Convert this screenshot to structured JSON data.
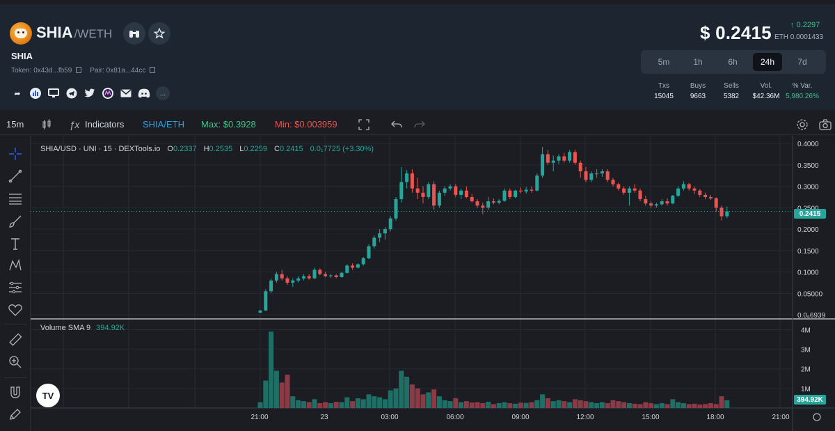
{
  "pair": {
    "base": "SHIA",
    "quote": "/WETH",
    "token_name": "SHIA",
    "token_addr": "Token: 0x43d...fb59",
    "pair_addr": "Pair: 0x81a...44cc"
  },
  "price": {
    "usd": "$ 0.2415",
    "change": "↑ 0.2297",
    "eth": "ETH 0.0001433"
  },
  "timeframes": [
    {
      "label": "5m",
      "active": false
    },
    {
      "label": "1h",
      "active": false
    },
    {
      "label": "6h",
      "active": false
    },
    {
      "label": "24h",
      "active": true
    },
    {
      "label": "7d",
      "active": false
    }
  ],
  "stats": [
    {
      "label": "Txs",
      "value": "15045"
    },
    {
      "label": "Buys",
      "value": "9663"
    },
    {
      "label": "Sells",
      "value": "5382"
    },
    {
      "label": "Vol.",
      "value": "$42.36M"
    },
    {
      "label": "% Var.",
      "value": "5,980.26%"
    }
  ],
  "toolbar": {
    "interval": "15m",
    "indicators": "Indicators",
    "symbol": "SHIA/ETH",
    "max": "Max: $0.3928",
    "min": "Min: $0.003959"
  },
  "legend": {
    "title": "SHIA/USD · UNI · 15 · DEXTools.io",
    "o_label": "O",
    "o": "0.2337",
    "h_label": "H",
    "h": "0.2535",
    "l_label": "L",
    "l": "0.2259",
    "c_label": "C",
    "c": "0.2415",
    "change": "0.0₁7725 (+3.30%)"
  },
  "volume_legend": {
    "label": "Volume SMA 9",
    "value": "394.92K"
  },
  "price_tag": "0.2415",
  "volume_tag": "394.92K",
  "colors": {
    "up": "#26a69a",
    "down": "#ef5350",
    "bg": "#1b1d23",
    "grid": "#262a33",
    "accent": "#3ec48a"
  },
  "chart_data": {
    "type": "candlestick",
    "price_ticks": [
      "0.4000",
      "0.3500",
      "0.3000",
      "0.2500",
      "0.2000",
      "0.1500",
      "0.1000",
      "0.05000",
      "0.0₆6939"
    ],
    "price_tick_values": [
      0.4,
      0.35,
      0.3,
      0.25,
      0.2,
      0.15,
      0.1,
      0.05,
      0.0
    ],
    "volume_ticks": [
      "4M",
      "3M",
      "2M",
      "1M"
    ],
    "volume_tick_values": [
      4000000,
      3000000,
      2000000,
      1000000
    ],
    "time_ticks": [
      "21:00",
      "23",
      "03:00",
      "06:00",
      "09:00",
      "12:00",
      "15:00",
      "18:00",
      "21:00"
    ],
    "ohlc": [
      [
        0.005,
        0.012,
        0.004,
        0.01
      ],
      [
        0.01,
        0.06,
        0.009,
        0.055
      ],
      [
        0.055,
        0.085,
        0.05,
        0.08
      ],
      [
        0.08,
        0.1,
        0.075,
        0.095
      ],
      [
        0.095,
        0.105,
        0.08,
        0.085
      ],
      [
        0.085,
        0.09,
        0.07,
        0.075
      ],
      [
        0.075,
        0.085,
        0.065,
        0.08
      ],
      [
        0.08,
        0.09,
        0.075,
        0.085
      ],
      [
        0.085,
        0.095,
        0.08,
        0.09
      ],
      [
        0.09,
        0.095,
        0.082,
        0.085
      ],
      [
        0.085,
        0.11,
        0.084,
        0.105
      ],
      [
        0.105,
        0.108,
        0.092,
        0.095
      ],
      [
        0.095,
        0.1,
        0.088,
        0.09
      ],
      [
        0.09,
        0.095,
        0.086,
        0.092
      ],
      [
        0.092,
        0.095,
        0.085,
        0.088
      ],
      [
        0.088,
        0.1,
        0.087,
        0.098
      ],
      [
        0.098,
        0.118,
        0.096,
        0.115
      ],
      [
        0.115,
        0.12,
        0.105,
        0.11
      ],
      [
        0.11,
        0.12,
        0.108,
        0.118
      ],
      [
        0.118,
        0.135,
        0.115,
        0.132
      ],
      [
        0.132,
        0.165,
        0.13,
        0.16
      ],
      [
        0.16,
        0.185,
        0.155,
        0.18
      ],
      [
        0.18,
        0.2,
        0.17,
        0.19
      ],
      [
        0.19,
        0.205,
        0.175,
        0.2
      ],
      [
        0.2,
        0.23,
        0.195,
        0.225
      ],
      [
        0.225,
        0.275,
        0.22,
        0.27
      ],
      [
        0.27,
        0.345,
        0.262,
        0.31
      ],
      [
        0.31,
        0.338,
        0.295,
        0.33
      ],
      [
        0.33,
        0.34,
        0.285,
        0.295
      ],
      [
        0.295,
        0.32,
        0.27,
        0.285
      ],
      [
        0.285,
        0.3,
        0.26,
        0.275
      ],
      [
        0.275,
        0.31,
        0.27,
        0.305
      ],
      [
        0.305,
        0.312,
        0.245,
        0.255
      ],
      [
        0.255,
        0.29,
        0.25,
        0.285
      ],
      [
        0.285,
        0.3,
        0.278,
        0.295
      ],
      [
        0.295,
        0.305,
        0.29,
        0.3
      ],
      [
        0.3,
        0.305,
        0.275,
        0.28
      ],
      [
        0.28,
        0.295,
        0.27,
        0.29
      ],
      [
        0.29,
        0.3,
        0.272,
        0.275
      ],
      [
        0.275,
        0.282,
        0.262,
        0.265
      ],
      [
        0.265,
        0.27,
        0.25,
        0.255
      ],
      [
        0.255,
        0.262,
        0.235,
        0.25
      ],
      [
        0.25,
        0.275,
        0.245,
        0.265
      ],
      [
        0.265,
        0.272,
        0.258,
        0.262
      ],
      [
        0.262,
        0.27,
        0.258,
        0.266
      ],
      [
        0.266,
        0.295,
        0.264,
        0.29
      ],
      [
        0.29,
        0.295,
        0.27,
        0.275
      ],
      [
        0.275,
        0.292,
        0.272,
        0.29
      ],
      [
        0.29,
        0.297,
        0.284,
        0.288
      ],
      [
        0.288,
        0.298,
        0.283,
        0.292
      ],
      [
        0.292,
        0.3,
        0.285,
        0.29
      ],
      [
        0.29,
        0.33,
        0.288,
        0.325
      ],
      [
        0.325,
        0.392,
        0.32,
        0.375
      ],
      [
        0.375,
        0.385,
        0.35,
        0.355
      ],
      [
        0.355,
        0.372,
        0.335,
        0.36
      ],
      [
        0.36,
        0.375,
        0.352,
        0.37
      ],
      [
        0.37,
        0.378,
        0.355,
        0.36
      ],
      [
        0.36,
        0.385,
        0.355,
        0.38
      ],
      [
        0.38,
        0.385,
        0.35,
        0.355
      ],
      [
        0.355,
        0.36,
        0.32,
        0.335
      ],
      [
        0.335,
        0.345,
        0.31,
        0.315
      ],
      [
        0.315,
        0.335,
        0.31,
        0.33
      ],
      [
        0.33,
        0.34,
        0.32,
        0.33
      ],
      [
        0.33,
        0.34,
        0.322,
        0.335
      ],
      [
        0.335,
        0.34,
        0.31,
        0.315
      ],
      [
        0.315,
        0.32,
        0.3,
        0.305
      ],
      [
        0.305,
        0.308,
        0.29,
        0.295
      ],
      [
        0.295,
        0.3,
        0.28,
        0.285
      ],
      [
        0.285,
        0.3,
        0.255,
        0.295
      ],
      [
        0.295,
        0.305,
        0.285,
        0.29
      ],
      [
        0.29,
        0.295,
        0.265,
        0.27
      ],
      [
        0.27,
        0.278,
        0.255,
        0.26
      ],
      [
        0.26,
        0.265,
        0.25,
        0.255
      ],
      [
        0.255,
        0.262,
        0.25,
        0.258
      ],
      [
        0.258,
        0.27,
        0.255,
        0.265
      ],
      [
        0.265,
        0.272,
        0.255,
        0.26
      ],
      [
        0.26,
        0.28,
        0.258,
        0.278
      ],
      [
        0.278,
        0.3,
        0.275,
        0.295
      ],
      [
        0.295,
        0.312,
        0.29,
        0.305
      ],
      [
        0.305,
        0.308,
        0.29,
        0.295
      ],
      [
        0.295,
        0.3,
        0.282,
        0.29
      ],
      [
        0.29,
        0.294,
        0.275,
        0.28
      ],
      [
        0.28,
        0.285,
        0.27,
        0.275
      ],
      [
        0.275,
        0.28,
        0.268,
        0.272
      ],
      [
        0.272,
        0.274,
        0.24,
        0.25
      ],
      [
        0.25,
        0.255,
        0.22,
        0.23
      ],
      [
        0.23,
        0.253,
        0.226,
        0.2415
      ]
    ],
    "volume": [
      300000,
      1400000,
      3900000,
      1900000,
      1300000,
      1700000,
      600000,
      400000,
      350000,
      300000,
      450000,
      250000,
      300000,
      250000,
      320000,
      300000,
      550000,
      350000,
      500000,
      450000,
      700000,
      600000,
      550000,
      450000,
      900000,
      1000000,
      1900000,
      1600000,
      1200000,
      1000000,
      700000,
      800000,
      950000,
      600000,
      400000,
      350000,
      500000,
      300000,
      350000,
      280000,
      300000,
      250000,
      320000,
      200000,
      250000,
      300000,
      250000,
      220000,
      280000,
      260000,
      300000,
      400000,
      700000,
      500000,
      350000,
      400000,
      350000,
      300000,
      450000,
      400000,
      350000,
      300000,
      250000,
      300000,
      250000,
      400000,
      350000,
      300000,
      250000,
      220000,
      200000,
      300000,
      250000,
      200000,
      250000,
      200000,
      450000,
      300000,
      250000,
      200000,
      220000,
      180000,
      200000,
      250000,
      200000,
      600000,
      400000
    ]
  }
}
